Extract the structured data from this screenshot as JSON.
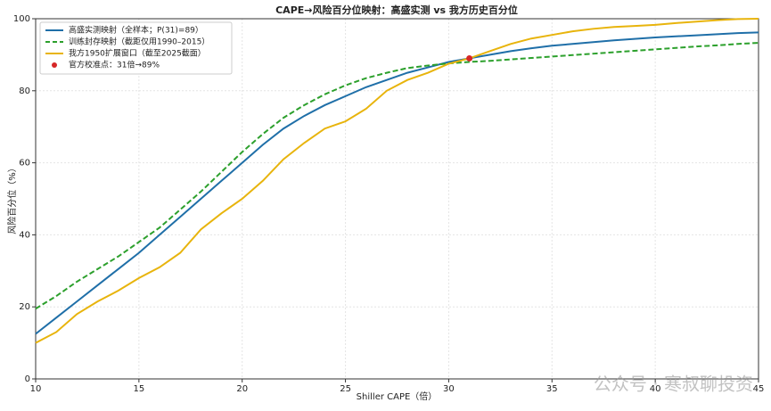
{
  "chart_data": {
    "type": "line",
    "title": "CAPE→风险百分位映射：高盛实测 vs 我方历史百分位",
    "x_label": "Shiller CAPE（倍）",
    "y_label": "风险百分位（%）",
    "x": [
      10,
      11,
      12,
      13,
      14,
      15,
      16,
      17,
      18,
      19,
      20,
      21,
      22,
      23,
      24,
      25,
      26,
      27,
      28,
      29,
      30,
      31,
      32,
      33,
      34,
      35,
      36,
      37,
      38,
      39,
      40,
      41,
      42,
      43,
      44,
      45
    ],
    "series": [
      {
        "name": "高盛实测映射（全样本；P(31)=89）",
        "color": "#1f6fa8",
        "linestyle": "solid",
        "values": [
          12.5,
          17,
          21.5,
          26,
          30.5,
          35,
          40,
          45,
          50,
          55,
          60,
          65,
          69.5,
          73,
          76,
          78.5,
          81,
          83,
          85,
          86.5,
          88,
          89,
          90,
          91,
          91.8,
          92.5,
          93,
          93.5,
          94,
          94.4,
          94.8,
          95.1,
          95.4,
          95.7,
          96,
          96.2
        ]
      },
      {
        "name": "训练封存映射（截距仅用1990–2015）",
        "color": "#2ca02c",
        "linestyle": "dashed",
        "values": [
          19.5,
          23,
          27,
          30.5,
          34,
          38,
          42,
          47,
          52,
          57.5,
          63,
          68,
          72.5,
          76,
          79,
          81.5,
          83.5,
          85,
          86.3,
          87,
          87.6,
          88,
          88.3,
          88.7,
          89.1,
          89.5,
          89.9,
          90.3,
          90.7,
          91.1,
          91.5,
          91.9,
          92.3,
          92.6,
          93,
          93.3
        ]
      },
      {
        "name": "我方1950扩展窗口（截至2025截面）",
        "color": "#e8b40c",
        "linestyle": "solid",
        "values": [
          10,
          13,
          18,
          21.5,
          24.5,
          28,
          31,
          35,
          41.5,
          46,
          50,
          55,
          61,
          65.5,
          69.5,
          71.5,
          75,
          80,
          83,
          85,
          87.5,
          89,
          91,
          93,
          94.5,
          95.5,
          96.5,
          97.2,
          97.7,
          98,
          98.3,
          98.8,
          99.2,
          99.6,
          99.9,
          100
        ]
      }
    ],
    "calibration_point": {
      "name": "官方校准点：31倍→89%",
      "x": 31,
      "y": 89,
      "color": "#d62728"
    },
    "xlim": [
      10,
      45
    ],
    "xticks": [
      10,
      15,
      20,
      25,
      30,
      35,
      40,
      45
    ],
    "ylim": [
      0,
      100
    ],
    "yticks": [
      0,
      20,
      40,
      60,
      80,
      100
    ],
    "grid": true,
    "legend": "upper-left",
    "watermark": "公众号 · 寒叔聊投资"
  }
}
